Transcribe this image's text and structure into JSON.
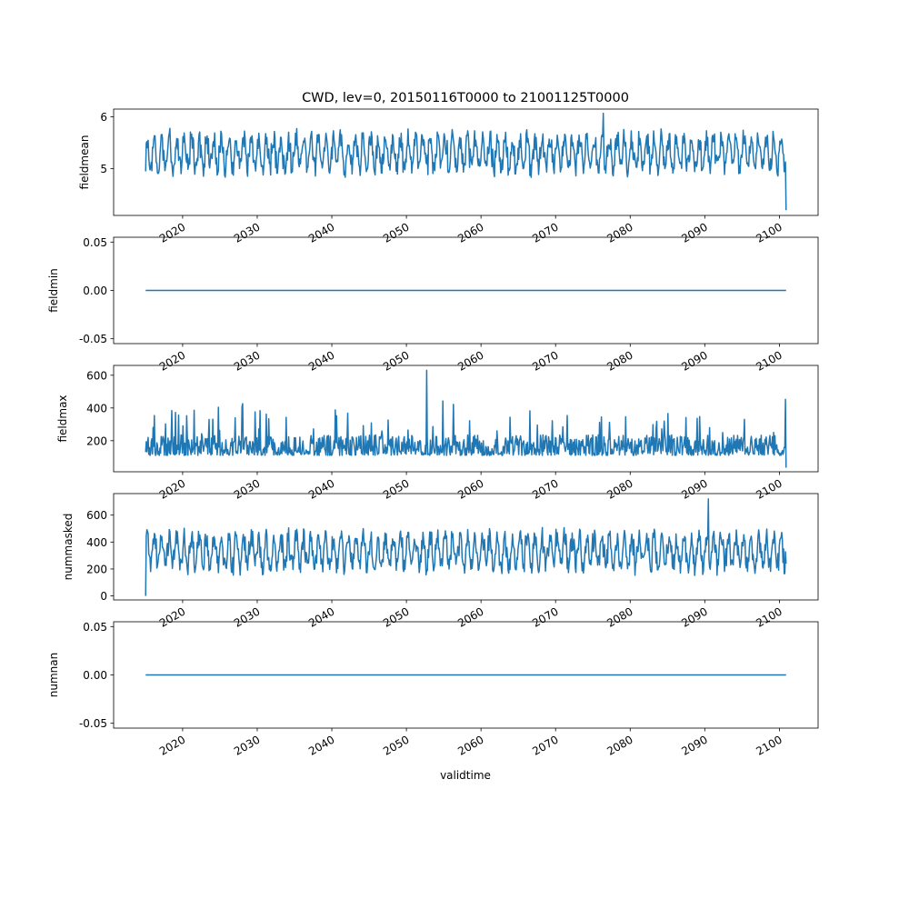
{
  "title": "CWD, lev=0, 20150116T0000 to 21001125T0000",
  "xlabel": "validtime",
  "x_tick_labels": [
    "2020",
    "2030",
    "2040",
    "2050",
    "2060",
    "2070",
    "2080",
    "2090",
    "2100"
  ],
  "line_color": "#1f77b4",
  "chart_data": [
    {
      "type": "line",
      "name": "fieldmean",
      "ylabel": "fieldmean",
      "x_range": [
        "2015-01-16",
        "2100-11-25"
      ],
      "y_ticks": [
        5,
        6
      ],
      "ylim": [
        4.1,
        6.15
      ],
      "profile": "noisy",
      "summary": {
        "typical_low": 4.9,
        "typical_high": 5.7,
        "max": 6.07,
        "max_date": "2076-06",
        "last_value": 4.2,
        "first_value": 4.95
      },
      "grid": false
    },
    {
      "type": "line",
      "name": "fieldmin",
      "ylabel": "fieldmin",
      "x_range": [
        "2015-01-16",
        "2100-11-25"
      ],
      "y_ticks": [
        "-0.05",
        "0.00",
        "0.05"
      ],
      "ylim": [
        -0.055,
        0.055
      ],
      "profile": "constant",
      "summary": {
        "value": 0.0
      },
      "grid": false
    },
    {
      "type": "line",
      "name": "fieldmax",
      "ylabel": "fieldmax",
      "x_range": [
        "2015-01-16",
        "2100-11-25"
      ],
      "y_ticks": [
        200,
        400,
        600
      ],
      "ylim": [
        10,
        660
      ],
      "profile": "spiky",
      "summary": {
        "typical_low": 110,
        "typical_high": 250,
        "max": 630,
        "max_date": "2052-10",
        "last_value": 35
      },
      "grid": false
    },
    {
      "type": "line",
      "name": "nummasked",
      "ylabel": "nummasked",
      "x_range": [
        "2015-01-16",
        "2100-11-25"
      ],
      "y_ticks": [
        0,
        200,
        400,
        600
      ],
      "ylim": [
        -30,
        760
      ],
      "profile": "noisy",
      "summary": {
        "typical_low": 180,
        "typical_high": 480,
        "max": 720,
        "max_date": "2090-07",
        "first_value": 0
      },
      "grid": false
    },
    {
      "type": "line",
      "name": "numnan",
      "ylabel": "numnan",
      "x_range": [
        "2015-01-16",
        "2100-11-25"
      ],
      "y_ticks": [
        "-0.05",
        "0.00",
        "0.05"
      ],
      "ylim": [
        -0.055,
        0.055
      ],
      "profile": "constant",
      "summary": {
        "value": 0.0
      },
      "grid": false
    }
  ]
}
